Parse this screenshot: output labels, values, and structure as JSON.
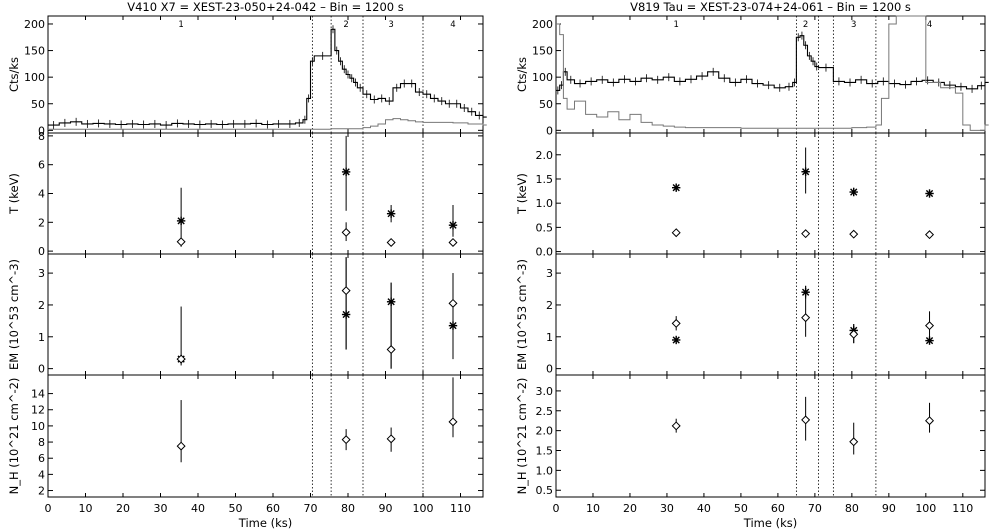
{
  "chart_data": [
    {
      "type": "scatter",
      "title": "V410 X7 = XEST-23-050+24-042  –  Bin = 1200 s",
      "xlabel": "Time (ks)",
      "xlim": [
        0,
        116
      ],
      "xticks": [
        "0",
        "10",
        "20",
        "30",
        "40",
        "50",
        "60",
        "70",
        "80",
        "90",
        "100",
        "110"
      ],
      "segment_boundaries": [
        70.5,
        75.5,
        84,
        100
      ],
      "segment_labels": [
        {
          "x": 35.5,
          "label": "1"
        },
        {
          "x": 79.5,
          "label": "2"
        },
        {
          "x": 91.5,
          "label": "3"
        },
        {
          "x": 108,
          "label": "4"
        }
      ],
      "panels": {
        "lightcurve": {
          "ylabel": "Cts/ks",
          "ylim": [
            -5,
            215
          ],
          "yticks": [
            "0",
            "50",
            "100",
            "150",
            "200"
          ],
          "series": [
            {
              "style": "black-steps",
              "x": [
                0,
                3,
                6,
                9,
                12,
                15,
                18,
                21,
                24,
                27,
                30,
                33,
                36,
                39,
                42,
                45,
                48,
                51,
                54,
                57,
                60,
                63,
                66,
                68,
                69,
                70,
                71,
                75.5,
                76.5,
                77.5,
                78.5,
                79.5,
                80.5,
                81.5,
                82.5,
                84,
                86,
                88,
                90,
                92,
                94,
                96,
                98,
                100,
                102,
                104,
                106,
                108,
                110,
                112,
                114,
                116
              ],
              "y": [
                10,
                14,
                16,
                12,
                13,
                12,
                11,
                12,
                11,
                12,
                10,
                13,
                12,
                11,
                12,
                11,
                12,
                12,
                13,
                11,
                12,
                12,
                14,
                20,
                60,
                130,
                140,
                190,
                150,
                130,
                115,
                105,
                98,
                90,
                80,
                68,
                58,
                60,
                55,
                80,
                88,
                88,
                72,
                68,
                60,
                55,
                50,
                50,
                42,
                35,
                28,
                25
              ]
            },
            {
              "style": "gray-steps",
              "x": [
                0,
                70,
                71,
                75.5,
                84,
                86,
                88,
                90,
                92,
                94,
                96,
                98,
                100,
                104,
                108,
                112,
                116
              ],
              "y": [
                2,
                2,
                2,
                3,
                5,
                8,
                12,
                20,
                22,
                20,
                18,
                16,
                15,
                15,
                14,
                12,
                10
              ]
            }
          ]
        },
        "T": {
          "ylabel": "T (keV)",
          "ylim": [
            -0.2,
            8.2
          ],
          "yticks": [
            "0",
            "2",
            "4",
            "6",
            "8"
          ],
          "points": [
            {
              "x": 35.5,
              "y": 2.1,
              "err": [
                0.3,
                4.4
              ],
              "marker": "star"
            },
            {
              "x": 35.5,
              "y": 0.65,
              "marker": "diamond"
            },
            {
              "x": 79.5,
              "y": 5.5,
              "err": [
                2.8,
                8.0
              ],
              "marker": "star"
            },
            {
              "x": 79.5,
              "y": 1.3,
              "err": [
                0.7,
                2.0
              ],
              "marker": "diamond"
            },
            {
              "x": 91.5,
              "y": 2.6,
              "err": [
                2.0,
                3.2
              ],
              "marker": "star"
            },
            {
              "x": 91.5,
              "y": 0.6,
              "marker": "diamond"
            },
            {
              "x": 108,
              "y": 1.8,
              "err": [
                1.0,
                3.2
              ],
              "marker": "star"
            },
            {
              "x": 108,
              "y": 0.6,
              "marker": "diamond"
            }
          ]
        },
        "EM": {
          "ylabel": "EM (10^53 cm^-3)",
          "ylim": [
            -0.2,
            3.6
          ],
          "yticks": [
            "0",
            "1",
            "2",
            "3"
          ],
          "points": [
            {
              "x": 35.5,
              "y": 0.3,
              "err": [
                0.1,
                1.95
              ],
              "marker": "star"
            },
            {
              "x": 35.5,
              "y": 0.3,
              "marker": "diamond"
            },
            {
              "x": 79.5,
              "y": 1.7,
              "err": [
                0.6,
                3.5
              ],
              "marker": "star"
            },
            {
              "x": 79.5,
              "y": 2.45,
              "err": [
                0.6,
                3.5
              ],
              "marker": "diamond"
            },
            {
              "x": 91.5,
              "y": 2.1,
              "err": [
                0.0,
                2.7
              ],
              "marker": "star"
            },
            {
              "x": 91.5,
              "y": 0.6,
              "err": [
                0.0,
                2.7
              ],
              "marker": "diamond"
            },
            {
              "x": 108,
              "y": 1.35,
              "err": [
                0.3,
                3.0
              ],
              "marker": "star"
            },
            {
              "x": 108,
              "y": 2.05,
              "err": [
                1.0,
                3.0
              ],
              "marker": "diamond"
            }
          ]
        },
        "NH": {
          "ylabel": "N_H (10^21 cm^-2)",
          "ylim": [
            1.2,
            16.3
          ],
          "yticks": [
            "2",
            "4",
            "6",
            "8",
            "10",
            "12",
            "14"
          ],
          "points": [
            {
              "x": 35.5,
              "y": 7.5,
              "err": [
                5.5,
                13.2
              ],
              "marker": "diamond"
            },
            {
              "x": 79.5,
              "y": 8.3,
              "err": [
                7.0,
                9.6
              ],
              "marker": "diamond"
            },
            {
              "x": 91.5,
              "y": 8.4,
              "err": [
                6.8,
                9.8
              ],
              "marker": "diamond"
            },
            {
              "x": 108,
              "y": 10.5,
              "err": [
                8.6,
                16.0
              ],
              "marker": "diamond"
            }
          ]
        }
      }
    },
    {
      "type": "scatter",
      "title": "V819 Tau = XEST-23-074+24-061  –  Bin = 1200 s",
      "xlabel": "Time (ks)",
      "xlim": [
        0,
        116
      ],
      "xticks": [
        "0",
        "10",
        "20",
        "30",
        "40",
        "50",
        "60",
        "70",
        "80",
        "90",
        "100",
        "110"
      ],
      "segment_boundaries": [
        65,
        71,
        75,
        86.5
      ],
      "segment_labels": [
        {
          "x": 32.5,
          "label": "1"
        },
        {
          "x": 67.5,
          "label": "2"
        },
        {
          "x": 80.5,
          "label": "3"
        },
        {
          "x": 101,
          "label": "4"
        }
      ],
      "panels": {
        "lightcurve": {
          "ylabel": "Cts/ks",
          "ylim": [
            -5,
            215
          ],
          "yticks": [
            "0",
            "50",
            "100",
            "150",
            "200"
          ],
          "series": [
            {
              "style": "black-steps",
              "x": [
                0,
                1,
                2,
                3,
                5,
                8,
                11,
                14,
                17,
                20,
                23,
                26,
                29,
                32,
                35,
                38,
                41,
                44,
                47,
                50,
                53,
                56,
                59,
                62,
                64,
                65,
                66,
                67,
                68,
                69,
                70,
                71,
                75,
                78,
                81,
                84,
                87,
                90,
                93,
                96,
                99,
                102,
                105,
                108,
                111,
                114,
                116
              ],
              "y": [
                75,
                85,
                110,
                95,
                88,
                92,
                95,
                90,
                96,
                92,
                98,
                95,
                100,
                92,
                96,
                102,
                110,
                98,
                90,
                96,
                88,
                85,
                80,
                82,
                90,
                175,
                178,
                160,
                140,
                130,
                120,
                118,
                92,
                90,
                95,
                88,
                92,
                88,
                86,
                92,
                94,
                90,
                85,
                82,
                78,
                84,
                90
              ]
            },
            {
              "style": "gray-steps",
              "x": [
                0,
                1,
                2,
                3,
                5,
                8,
                11,
                14,
                17,
                20,
                23,
                26,
                29,
                32,
                35,
                38,
                41,
                44,
                47,
                50,
                53,
                56,
                59,
                62,
                65,
                71,
                75,
                80,
                84,
                86.5,
                88,
                90,
                92,
                96,
                100,
                104,
                108,
                110,
                112,
                116
              ],
              "y": [
                200,
                180,
                60,
                40,
                55,
                30,
                25,
                35,
                20,
                30,
                15,
                10,
                8,
                6,
                5,
                5,
                5,
                5,
                5,
                4,
                4,
                4,
                4,
                4,
                4,
                4,
                4,
                5,
                6,
                10,
                60,
                200,
                215,
                215,
                90,
                80,
                70,
                10,
                0,
                10
              ]
            }
          ]
        },
        "T": {
          "ylabel": "T (keV)",
          "ylim": [
            -0.05,
            2.45
          ],
          "yticks": [
            "0.0",
            "0.5",
            "1.0",
            "1.5",
            "2.0"
          ],
          "points": [
            {
              "x": 32.5,
              "y": 1.32,
              "err": [
                1.25,
                1.4
              ],
              "marker": "star"
            },
            {
              "x": 32.5,
              "y": 0.39,
              "marker": "diamond"
            },
            {
              "x": 67.5,
              "y": 1.65,
              "err": [
                1.2,
                2.15
              ],
              "marker": "star"
            },
            {
              "x": 67.5,
              "y": 0.37,
              "marker": "diamond"
            },
            {
              "x": 80.5,
              "y": 1.23,
              "err": [
                1.15,
                1.32
              ],
              "marker": "star"
            },
            {
              "x": 80.5,
              "y": 0.36,
              "marker": "diamond"
            },
            {
              "x": 101,
              "y": 1.2,
              "err": [
                1.12,
                1.28
              ],
              "marker": "star"
            },
            {
              "x": 101,
              "y": 0.35,
              "marker": "diamond"
            }
          ]
        },
        "EM": {
          "ylabel": "EM (10^53 cm^-3)",
          "ylim": [
            -0.2,
            3.6
          ],
          "yticks": [
            "0",
            "1",
            "2",
            "3"
          ],
          "points": [
            {
              "x": 32.5,
              "y": 0.9,
              "marker": "star"
            },
            {
              "x": 32.5,
              "y": 1.42,
              "err": [
                1.2,
                1.65
              ],
              "marker": "diamond"
            },
            {
              "x": 67.5,
              "y": 2.4,
              "err": [
                2.2,
                2.6
              ],
              "marker": "star"
            },
            {
              "x": 67.5,
              "y": 1.6,
              "err": [
                1.0,
                2.6
              ],
              "marker": "diamond"
            },
            {
              "x": 80.5,
              "y": 1.2,
              "err": [
                0.8,
                1.4
              ],
              "marker": "star"
            },
            {
              "x": 80.5,
              "y": 1.08,
              "err": [
                0.8,
                1.4
              ],
              "marker": "diamond"
            },
            {
              "x": 101,
              "y": 0.88,
              "marker": "star"
            },
            {
              "x": 101,
              "y": 1.35,
              "err": [
                0.9,
                1.8
              ],
              "marker": "diamond"
            }
          ]
        },
        "NH": {
          "ylabel": "N_H (10^21 cm^-2)",
          "ylim": [
            0.33,
            3.4
          ],
          "yticks": [
            "0.5",
            "1.0",
            "1.5",
            "2.0",
            "2.5",
            "3.0"
          ],
          "points": [
            {
              "x": 32.5,
              "y": 2.12,
              "err": [
                1.95,
                2.3
              ],
              "marker": "diamond"
            },
            {
              "x": 67.5,
              "y": 2.27,
              "err": [
                1.75,
                2.85
              ],
              "marker": "diamond"
            },
            {
              "x": 80.5,
              "y": 1.72,
              "err": [
                1.4,
                2.2
              ],
              "marker": "diamond"
            },
            {
              "x": 101,
              "y": 2.25,
              "err": [
                1.95,
                2.7
              ],
              "marker": "diamond"
            }
          ]
        }
      }
    }
  ]
}
